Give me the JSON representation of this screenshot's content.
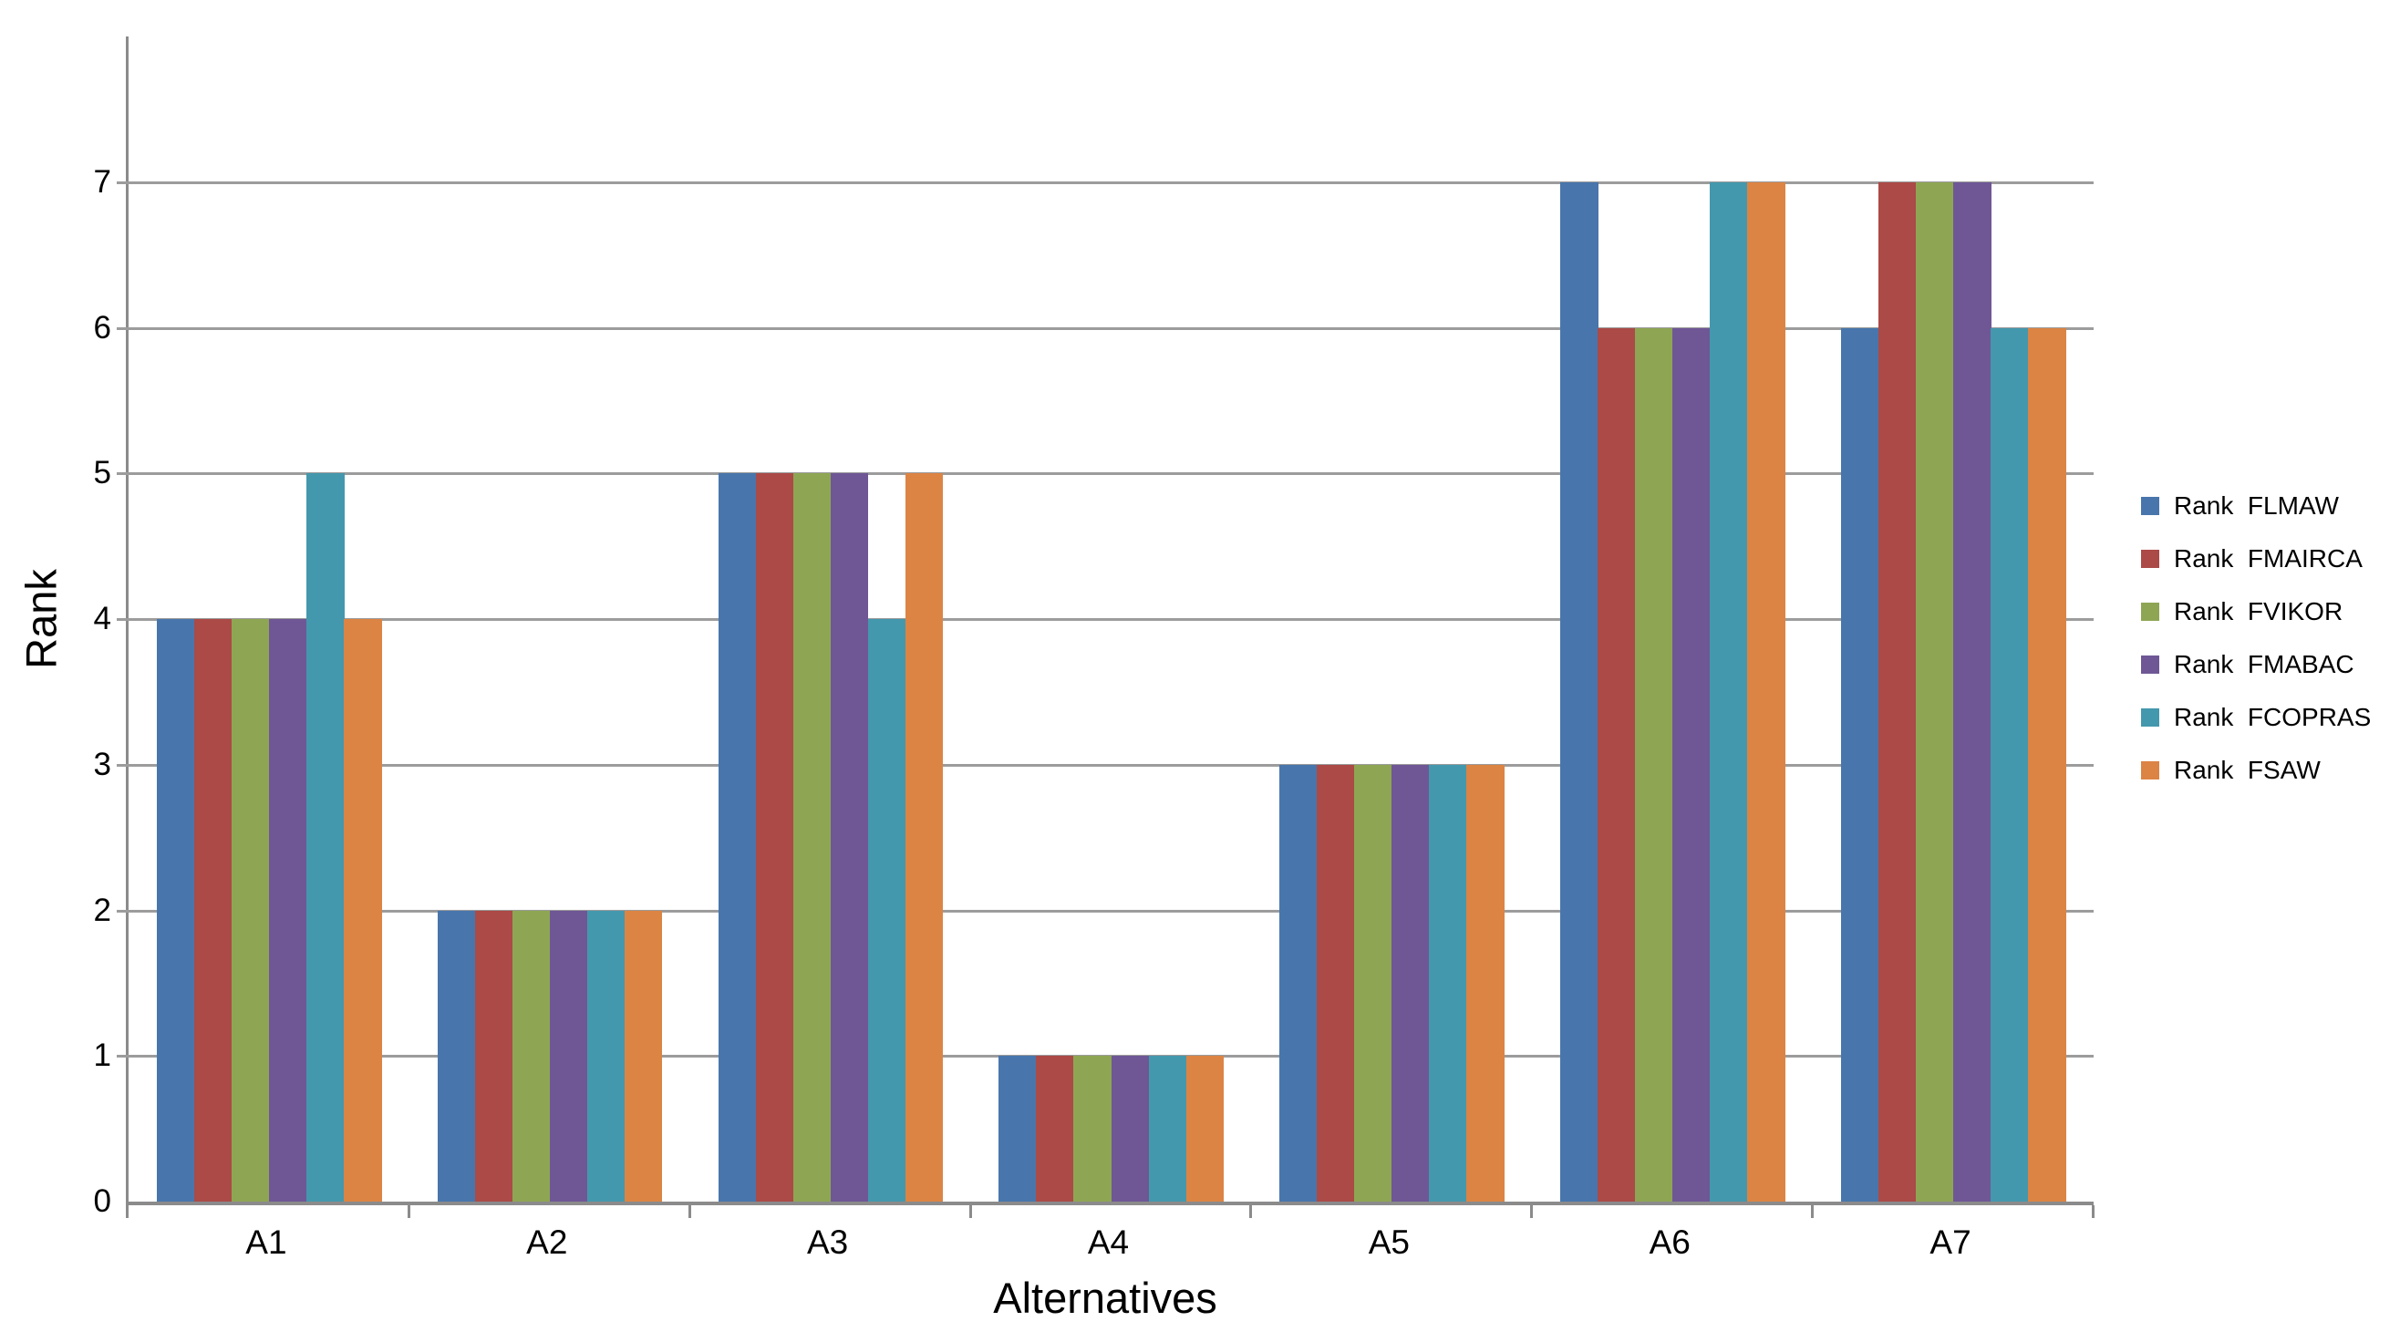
{
  "chart_data": {
    "type": "bar",
    "title": "",
    "xlabel": "Alternatives",
    "ylabel": "Rank",
    "categories": [
      "A1",
      "A2",
      "A3",
      "A4",
      "A5",
      "A6",
      "A7"
    ],
    "series": [
      {
        "name": "Rank  FLMAW",
        "color": "#4876AC",
        "values": [
          4,
          2,
          5,
          1,
          3,
          7,
          6
        ]
      },
      {
        "name": "Rank  FMAIRCA",
        "color": "#AB4A47",
        "values": [
          4,
          2,
          5,
          1,
          3,
          6,
          7
        ]
      },
      {
        "name": "Rank  FVIKOR",
        "color": "#8EA653",
        "values": [
          4,
          2,
          5,
          1,
          3,
          6,
          7
        ]
      },
      {
        "name": "Rank  FMABAC",
        "color": "#6F5796",
        "values": [
          4,
          2,
          5,
          1,
          3,
          6,
          7
        ]
      },
      {
        "name": "Rank  FCOPRAS",
        "color": "#4498AD",
        "values": [
          5,
          2,
          4,
          1,
          3,
          7,
          6
        ]
      },
      {
        "name": "Rank  FSAW",
        "color": "#DC8444",
        "values": [
          4,
          2,
          5,
          1,
          3,
          7,
          6
        ]
      }
    ],
    "y_ticks": [
      "0",
      "1",
      "2",
      "3",
      "4",
      "5",
      "6",
      "7"
    ],
    "ylim": [
      0,
      8
    ],
    "grid": true,
    "legend_position": "right",
    "colors": {
      "gridline": "#9c9c9c",
      "axis": "#8b8b8b",
      "text": "#000000",
      "background": "#ffffff"
    }
  }
}
